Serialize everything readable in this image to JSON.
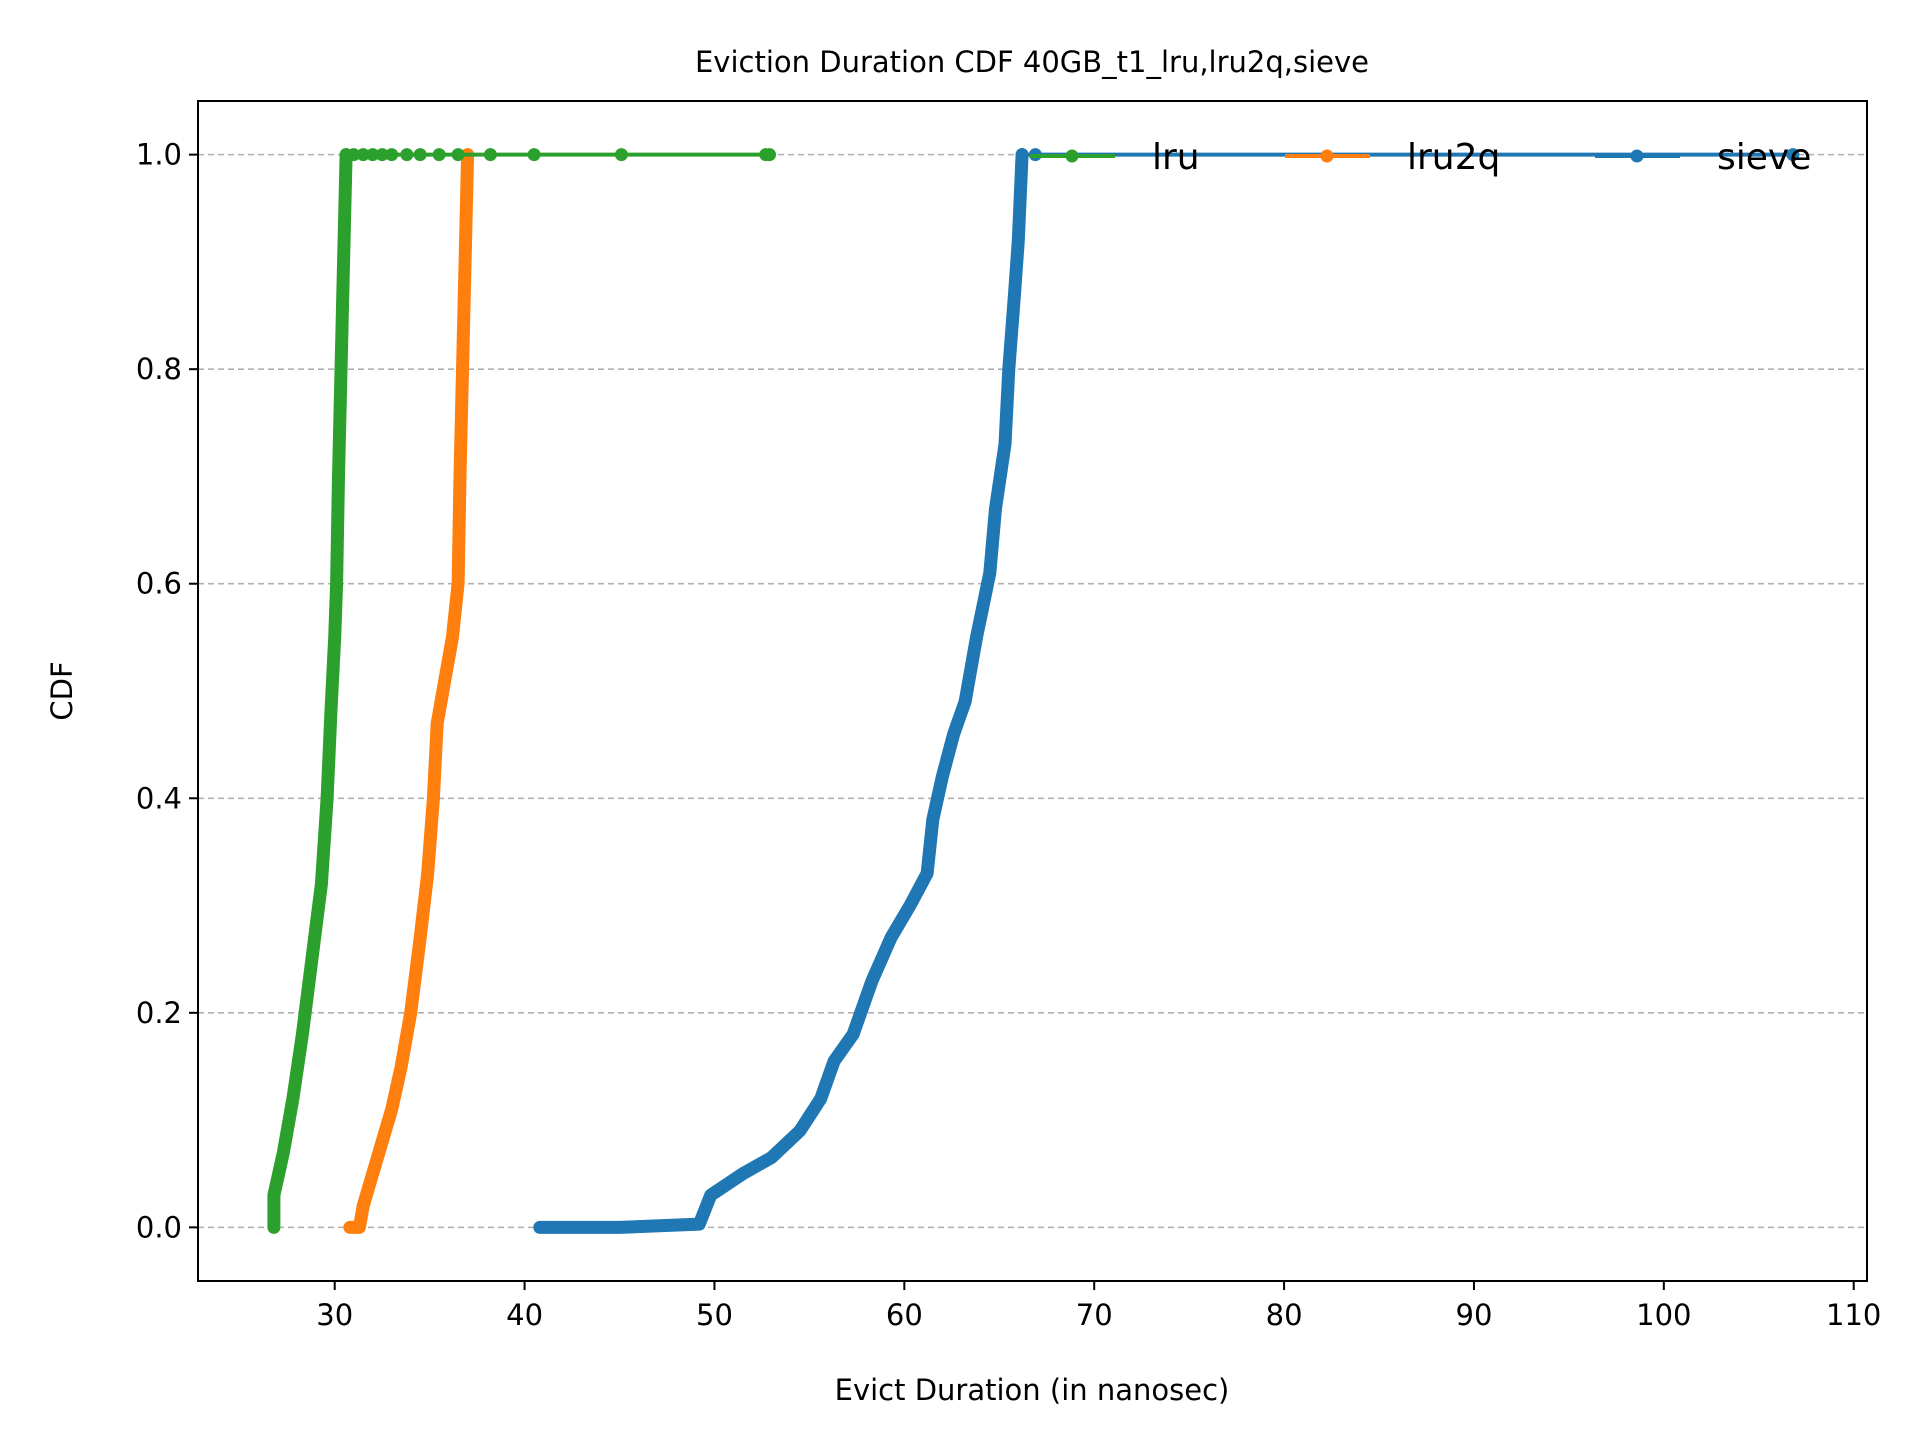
{
  "chart_data": {
    "type": "line",
    "title": "Eviction Duration CDF 40GB_t1_lru,lru2q,sieve",
    "xlabel": "Evict Duration (in nanosec)",
    "ylabel": "CDF",
    "xlim": [
      22.8,
      110.7
    ],
    "ylim": [
      -0.05,
      1.05
    ],
    "xticks": [
      30,
      40,
      50,
      60,
      70,
      80,
      90,
      100,
      110
    ],
    "yticks": [
      0.0,
      0.2,
      0.4,
      0.6,
      0.8,
      1.0
    ],
    "xtick_labels": [
      "30",
      "40",
      "50",
      "60",
      "70",
      "80",
      "90",
      "100",
      "110"
    ],
    "ytick_labels": [
      "0.0",
      "0.2",
      "0.4",
      "0.6",
      "0.8",
      "1.0"
    ],
    "grid": "y-dashed",
    "legend_placement": "top-right",
    "legend_columns": 3,
    "series": [
      {
        "name": "lru",
        "color": "#2ca02c",
        "curve": [
          [
            26.8,
            0.0
          ],
          [
            26.8,
            0.03
          ],
          [
            27.3,
            0.07
          ],
          [
            27.8,
            0.12
          ],
          [
            28.3,
            0.18
          ],
          [
            28.8,
            0.25
          ],
          [
            29.3,
            0.32
          ],
          [
            29.6,
            0.4
          ],
          [
            29.8,
            0.48
          ],
          [
            30.0,
            0.55
          ],
          [
            30.1,
            0.6
          ],
          [
            30.2,
            0.7
          ],
          [
            30.4,
            0.85
          ],
          [
            30.6,
            1.0
          ]
        ],
        "tail": [
          30.6,
          31.0,
          31.5,
          32.0,
          32.5,
          33.0,
          33.8,
          34.5,
          35.5,
          36.5,
          38.2,
          40.5,
          45.1,
          52.7,
          52.9
        ]
      },
      {
        "name": "lru2q",
        "color": "#ff7f0e",
        "curve": [
          [
            30.8,
            0.0
          ],
          [
            31.3,
            0.0
          ],
          [
            31.5,
            0.02
          ],
          [
            32.0,
            0.05
          ],
          [
            32.5,
            0.08
          ],
          [
            33.0,
            0.11
          ],
          [
            33.5,
            0.15
          ],
          [
            34.0,
            0.2
          ],
          [
            34.5,
            0.27
          ],
          [
            34.9,
            0.33
          ],
          [
            35.2,
            0.4
          ],
          [
            35.4,
            0.47
          ],
          [
            35.8,
            0.51
          ],
          [
            36.2,
            0.55
          ],
          [
            36.5,
            0.6
          ],
          [
            36.6,
            0.7
          ],
          [
            36.8,
            0.85
          ],
          [
            37.0,
            1.0
          ]
        ],
        "tail": [
          37.0
        ]
      },
      {
        "name": "sieve",
        "color": "#1f77b4",
        "curve": [
          [
            40.8,
            0.0
          ],
          [
            45.0,
            0.0
          ],
          [
            49.2,
            0.003
          ],
          [
            49.8,
            0.03
          ],
          [
            51.5,
            0.05
          ],
          [
            53.0,
            0.065
          ],
          [
            54.5,
            0.09
          ],
          [
            55.6,
            0.12
          ],
          [
            56.3,
            0.155
          ],
          [
            57.3,
            0.18
          ],
          [
            58.3,
            0.23
          ],
          [
            59.3,
            0.27
          ],
          [
            60.3,
            0.3
          ],
          [
            61.2,
            0.33
          ],
          [
            61.5,
            0.38
          ],
          [
            62.0,
            0.42
          ],
          [
            62.6,
            0.46
          ],
          [
            63.2,
            0.49
          ],
          [
            63.8,
            0.55
          ],
          [
            64.5,
            0.61
          ],
          [
            64.8,
            0.67
          ],
          [
            65.3,
            0.73
          ],
          [
            65.5,
            0.8
          ],
          [
            65.8,
            0.87
          ],
          [
            66.0,
            0.92
          ],
          [
            66.1,
            0.96
          ],
          [
            66.2,
            1.0
          ]
        ],
        "tail": [
          66.2,
          66.9,
          106.8
        ]
      }
    ]
  }
}
